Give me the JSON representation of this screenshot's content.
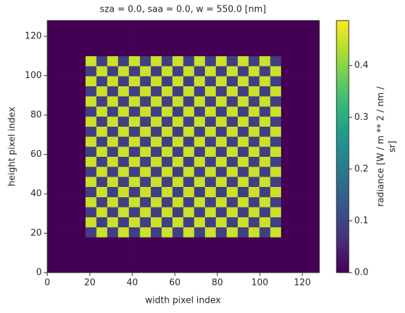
{
  "chart_data": {
    "type": "heatmap",
    "title": "sza = 0.0, saa = 0.0, w = 550.0 [nm]",
    "xlabel": "width pixel index",
    "ylabel": "height pixel index",
    "colorbar_label": [
      "radiance [W / m ** 2 / nm /",
      "sr]"
    ],
    "colormap": "viridis",
    "xlim": [
      0,
      128
    ],
    "ylim": [
      0,
      128
    ],
    "xticks": [
      0,
      20,
      40,
      60,
      80,
      100,
      120
    ],
    "yticks": [
      0,
      20,
      40,
      60,
      80,
      100,
      120
    ],
    "clim": [
      0,
      0.487
    ],
    "cticks": [
      0.0,
      0.1,
      0.2,
      0.3,
      0.4
    ],
    "cticks_labels": [
      "0.0",
      "0.1",
      "0.2",
      "0.3",
      "0.4"
    ],
    "xbins": [
      0,
      18,
      23.1,
      28.2,
      33.3,
      38.4,
      43.6,
      48.7,
      53.8,
      58.9,
      64,
      69.1,
      74.2,
      79.3,
      84.4,
      89.6,
      94.7,
      99.8,
      104.9,
      110,
      128
    ],
    "ybins": [
      0,
      18,
      23.1,
      28.2,
      33.3,
      38.4,
      43.6,
      48.7,
      53.8,
      58.9,
      64,
      69.1,
      74.2,
      79.3,
      84.4,
      89.6,
      94.7,
      99.8,
      104.9,
      110,
      128
    ],
    "values": [
      [
        0,
        0,
        0,
        0,
        0,
        0,
        0,
        0,
        0,
        0,
        0,
        0,
        0,
        0,
        0,
        0,
        0,
        0,
        0,
        0
      ],
      [
        0,
        0.09,
        0.45,
        0.09,
        0.45,
        0.09,
        0.45,
        0.09,
        0.45,
        0.09,
        0.45,
        0.09,
        0.45,
        0.09,
        0.45,
        0.09,
        0.45,
        0.09,
        0.45,
        0
      ],
      [
        0,
        0.45,
        0.09,
        0.45,
        0.09,
        0.45,
        0.09,
        0.45,
        0.09,
        0.45,
        0.09,
        0.45,
        0.09,
        0.45,
        0.09,
        0.45,
        0.09,
        0.45,
        0.09,
        0
      ],
      [
        0,
        0.09,
        0.45,
        0.09,
        0.45,
        0.09,
        0.45,
        0.09,
        0.45,
        0.09,
        0.45,
        0.09,
        0.45,
        0.09,
        0.45,
        0.09,
        0.45,
        0.09,
        0.45,
        0
      ],
      [
        0,
        0.45,
        0.09,
        0.45,
        0.09,
        0.45,
        0.09,
        0.45,
        0.09,
        0.45,
        0.09,
        0.45,
        0.09,
        0.45,
        0.09,
        0.45,
        0.09,
        0.45,
        0.09,
        0
      ],
      [
        0,
        0.09,
        0.45,
        0.09,
        0.45,
        0.09,
        0.45,
        0.09,
        0.45,
        0.09,
        0.45,
        0.09,
        0.45,
        0.09,
        0.45,
        0.09,
        0.45,
        0.09,
        0.45,
        0
      ],
      [
        0,
        0.45,
        0.09,
        0.45,
        0.09,
        0.45,
        0.09,
        0.45,
        0.09,
        0.45,
        0.09,
        0.45,
        0.09,
        0.45,
        0.09,
        0.45,
        0.09,
        0.45,
        0.09,
        0
      ],
      [
        0,
        0.09,
        0.45,
        0.09,
        0.45,
        0.09,
        0.45,
        0.09,
        0.45,
        0.09,
        0.45,
        0.09,
        0.45,
        0.09,
        0.45,
        0.09,
        0.45,
        0.09,
        0.45,
        0
      ],
      [
        0,
        0.45,
        0.09,
        0.45,
        0.09,
        0.45,
        0.09,
        0.45,
        0.09,
        0.45,
        0.09,
        0.45,
        0.09,
        0.45,
        0.09,
        0.45,
        0.09,
        0.45,
        0.09,
        0
      ],
      [
        0,
        0.09,
        0.45,
        0.09,
        0.45,
        0.09,
        0.45,
        0.09,
        0.45,
        0.09,
        0.45,
        0.09,
        0.45,
        0.09,
        0.45,
        0.09,
        0.45,
        0.09,
        0.45,
        0
      ],
      [
        0,
        0.45,
        0.09,
        0.45,
        0.09,
        0.45,
        0.09,
        0.45,
        0.09,
        0.45,
        0.09,
        0.45,
        0.09,
        0.45,
        0.09,
        0.45,
        0.09,
        0.45,
        0.09,
        0
      ],
      [
        0,
        0.09,
        0.45,
        0.09,
        0.45,
        0.09,
        0.45,
        0.09,
        0.45,
        0.09,
        0.45,
        0.09,
        0.45,
        0.09,
        0.45,
        0.09,
        0.45,
        0.09,
        0.45,
        0
      ],
      [
        0,
        0.45,
        0.09,
        0.45,
        0.09,
        0.45,
        0.09,
        0.45,
        0.09,
        0.45,
        0.09,
        0.45,
        0.09,
        0.45,
        0.09,
        0.45,
        0.09,
        0.45,
        0.09,
        0
      ],
      [
        0,
        0.09,
        0.45,
        0.09,
        0.45,
        0.09,
        0.45,
        0.09,
        0.45,
        0.09,
        0.45,
        0.09,
        0.45,
        0.09,
        0.45,
        0.09,
        0.45,
        0.09,
        0.45,
        0
      ],
      [
        0,
        0.45,
        0.09,
        0.45,
        0.09,
        0.45,
        0.09,
        0.45,
        0.09,
        0.45,
        0.09,
        0.45,
        0.09,
        0.45,
        0.09,
        0.45,
        0.09,
        0.45,
        0.09,
        0
      ],
      [
        0,
        0.09,
        0.45,
        0.09,
        0.45,
        0.09,
        0.45,
        0.09,
        0.45,
        0.09,
        0.45,
        0.09,
        0.45,
        0.09,
        0.45,
        0.09,
        0.45,
        0.09,
        0.45,
        0
      ],
      [
        0,
        0.45,
        0.09,
        0.45,
        0.09,
        0.45,
        0.09,
        0.45,
        0.09,
        0.45,
        0.09,
        0.45,
        0.09,
        0.45,
        0.09,
        0.45,
        0.09,
        0.45,
        0.09,
        0
      ],
      [
        0,
        0.09,
        0.45,
        0.09,
        0.45,
        0.09,
        0.45,
        0.09,
        0.45,
        0.09,
        0.45,
        0.09,
        0.45,
        0.09,
        0.45,
        0.09,
        0.45,
        0.09,
        0.45,
        0
      ],
      [
        0,
        0.45,
        0.09,
        0.45,
        0.09,
        0.45,
        0.09,
        0.45,
        0.09,
        0.45,
        0.09,
        0.45,
        0.09,
        0.45,
        0.09,
        0.45,
        0.09,
        0.45,
        0.09,
        0
      ],
      [
        0,
        0,
        0,
        0,
        0,
        0,
        0,
        0,
        0,
        0,
        0,
        0,
        0,
        0,
        0,
        0,
        0,
        0,
        0,
        0
      ]
    ]
  }
}
